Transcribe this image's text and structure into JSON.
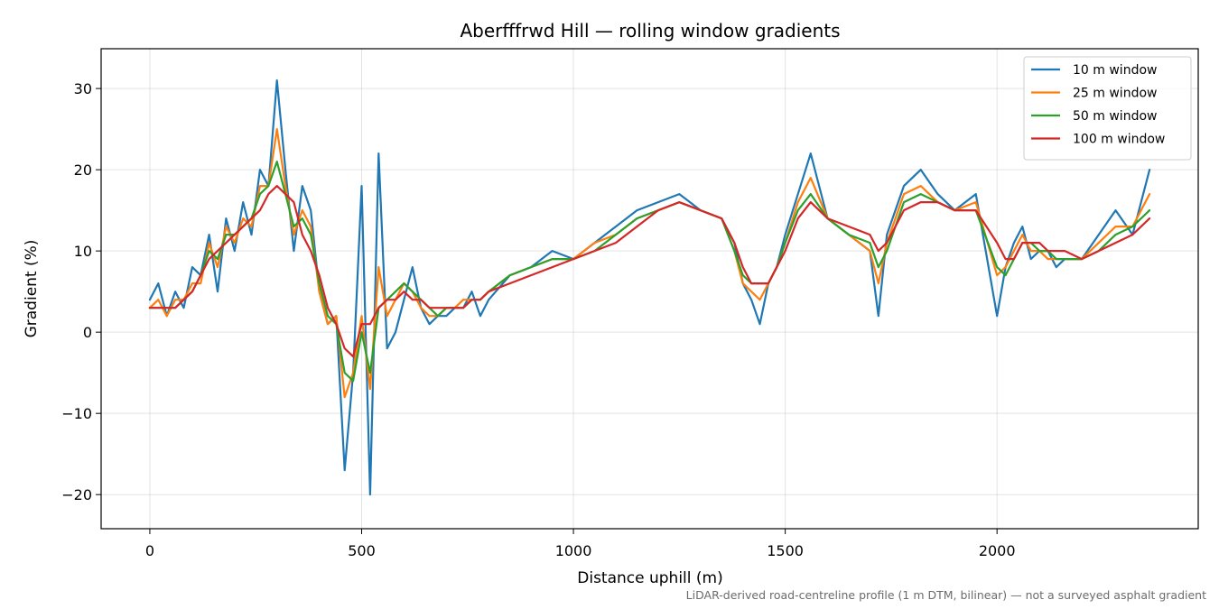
{
  "chart_data": {
    "type": "line",
    "title": "Aberfffrwd Hill — rolling window gradients",
    "xlabel": "Distance uphill (m)",
    "ylabel": "Gradient (%)",
    "footnote": "LiDAR-derived road-centreline profile (1 m DTM, bilinear) — not a surveyed asphalt gradient",
    "xlim": [
      -115,
      2475
    ],
    "ylim": [
      -24.2,
      34.9
    ],
    "xticks": [
      0,
      500,
      1000,
      1500,
      2000
    ],
    "xtick_labels": [
      "0",
      "500",
      "1000",
      "1500",
      "2000"
    ],
    "yticks": [
      -20,
      -10,
      0,
      10,
      20,
      30
    ],
    "ytick_labels": [
      "−20",
      "−10",
      "0",
      "10",
      "20",
      "30"
    ],
    "grid": true,
    "legend_position": "top-right",
    "x": [
      0,
      20,
      40,
      60,
      80,
      100,
      120,
      140,
      160,
      180,
      200,
      220,
      240,
      260,
      280,
      300,
      320,
      340,
      360,
      380,
      400,
      420,
      440,
      460,
      480,
      500,
      520,
      540,
      560,
      580,
      600,
      620,
      640,
      660,
      680,
      700,
      720,
      740,
      760,
      780,
      800,
      850,
      900,
      950,
      1000,
      1050,
      1100,
      1150,
      1200,
      1250,
      1300,
      1350,
      1380,
      1400,
      1420,
      1440,
      1460,
      1480,
      1500,
      1530,
      1560,
      1600,
      1650,
      1700,
      1720,
      1740,
      1780,
      1820,
      1860,
      1900,
      1950,
      2000,
      2020,
      2040,
      2060,
      2080,
      2100,
      2120,
      2140,
      2160,
      2200,
      2240,
      2280,
      2320,
      2360
    ],
    "series": [
      {
        "name": "10 m window",
        "color": "#1f77b4",
        "width": 2.2,
        "values": [
          4,
          6,
          2,
          5,
          3,
          8,
          7,
          12,
          5,
          14,
          10,
          16,
          12,
          20,
          18,
          31,
          20,
          10,
          18,
          15,
          5,
          1,
          2,
          -17,
          -5,
          18,
          -20,
          22,
          -2,
          0,
          4,
          8,
          3,
          1,
          2,
          2,
          3,
          3,
          5,
          2,
          4,
          7,
          8,
          10,
          9,
          11,
          13,
          15,
          16,
          17,
          15,
          14,
          11,
          6,
          4,
          1,
          6,
          8,
          12,
          17,
          22,
          14,
          12,
          10,
          2,
          12,
          18,
          20,
          17,
          15,
          17,
          2,
          8,
          11,
          13,
          9,
          10,
          10,
          8,
          9,
          9,
          12,
          15,
          12,
          20
        ]
      },
      {
        "name": "25 m window",
        "color": "#ff7f0e",
        "width": 2.2,
        "values": [
          3,
          4,
          2,
          4,
          4,
          6,
          6,
          11,
          8,
          13,
          11,
          14,
          13,
          18,
          18,
          25,
          18,
          12,
          15,
          13,
          5,
          1,
          2,
          -8,
          -5,
          2,
          -7,
          8,
          2,
          4,
          6,
          5,
          3,
          2,
          2,
          3,
          3,
          4,
          4,
          4,
          5,
          7,
          8,
          9,
          9,
          11,
          12,
          14,
          15,
          16,
          15,
          14,
          10,
          6,
          5,
          4,
          6,
          8,
          11,
          16,
          19,
          14,
          12,
          10,
          6,
          11,
          17,
          18,
          16,
          15,
          16,
          7,
          8,
          10,
          12,
          10,
          10,
          9,
          9,
          9,
          9,
          11,
          13,
          13,
          17
        ]
      },
      {
        "name": "50 m window",
        "color": "#2ca02c",
        "width": 2.2,
        "values": [
          3,
          3,
          3,
          3,
          4,
          5,
          7,
          10,
          9,
          12,
          12,
          13,
          14,
          17,
          18,
          21,
          17,
          13,
          14,
          12,
          6,
          2,
          1,
          -5,
          -6,
          0,
          -5,
          3,
          4,
          5,
          6,
          5,
          4,
          3,
          2,
          3,
          3,
          3,
          4,
          4,
          5,
          7,
          8,
          9,
          9,
          10,
          12,
          14,
          15,
          16,
          15,
          14,
          10,
          7,
          6,
          6,
          6,
          8,
          11,
          15,
          17,
          14,
          12,
          11,
          8,
          10,
          16,
          17,
          16,
          15,
          15,
          8,
          7,
          9,
          11,
          11,
          10,
          10,
          9,
          9,
          9,
          10,
          12,
          13,
          15
        ]
      },
      {
        "name": "100 m window",
        "color": "#d62728",
        "width": 2.2,
        "values": [
          3,
          3,
          3,
          3,
          4,
          5,
          7,
          9,
          10,
          11,
          12,
          13,
          14,
          15,
          17,
          18,
          17,
          16,
          12,
          10,
          7,
          3,
          1,
          -2,
          -3,
          1,
          1,
          3,
          4,
          4,
          5,
          4,
          4,
          3,
          3,
          3,
          3,
          3,
          4,
          4,
          5,
          6,
          7,
          8,
          9,
          10,
          11,
          13,
          15,
          16,
          15,
          14,
          11,
          8,
          6,
          6,
          6,
          8,
          10,
          14,
          16,
          14,
          13,
          12,
          10,
          11,
          15,
          16,
          16,
          15,
          15,
          11,
          9,
          9,
          11,
          11,
          11,
          10,
          10,
          10,
          9,
          10,
          11,
          12,
          14
        ]
      }
    ]
  }
}
